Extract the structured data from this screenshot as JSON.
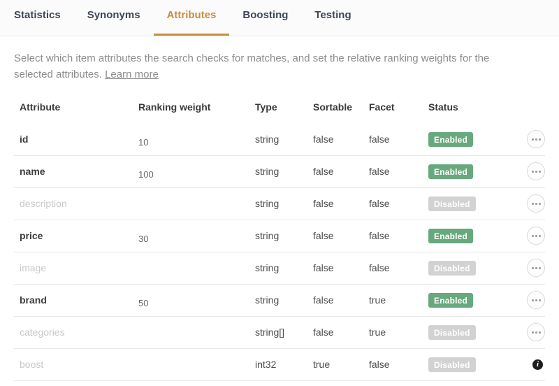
{
  "tabs": [
    {
      "label": "Statistics",
      "active": false
    },
    {
      "label": "Synonyms",
      "active": false
    },
    {
      "label": "Attributes",
      "active": true
    },
    {
      "label": "Boosting",
      "active": false
    },
    {
      "label": "Testing",
      "active": false
    }
  ],
  "description": {
    "text": "Select which item attributes the search checks for matches, and set the relative ranking weights for the selected attributes.",
    "link_label": "Learn more"
  },
  "table": {
    "headers": {
      "attribute": "Attribute",
      "weight": "Ranking weight",
      "type": "Type",
      "sortable": "Sortable",
      "facet": "Facet",
      "status": "Status"
    },
    "rows": [
      {
        "attribute": "id",
        "weight": "10",
        "type": "string",
        "sortable": "false",
        "facet": "false",
        "status": "Enabled",
        "enabled": true,
        "action": "menu"
      },
      {
        "attribute": "name",
        "weight": "100",
        "type": "string",
        "sortable": "false",
        "facet": "false",
        "status": "Enabled",
        "enabled": true,
        "action": "menu"
      },
      {
        "attribute": "description",
        "weight": "",
        "type": "string",
        "sortable": "false",
        "facet": "false",
        "status": "Disabled",
        "enabled": false,
        "action": "menu"
      },
      {
        "attribute": "price",
        "weight": "30",
        "type": "string",
        "sortable": "false",
        "facet": "false",
        "status": "Enabled",
        "enabled": true,
        "action": "menu"
      },
      {
        "attribute": "image",
        "weight": "",
        "type": "string",
        "sortable": "false",
        "facet": "false",
        "status": "Disabled",
        "enabled": false,
        "action": "menu"
      },
      {
        "attribute": "brand",
        "weight": "50",
        "type": "string",
        "sortable": "false",
        "facet": "true",
        "status": "Enabled",
        "enabled": true,
        "action": "menu"
      },
      {
        "attribute": "categories",
        "weight": "",
        "type": "string[]",
        "sortable": "false",
        "facet": "true",
        "status": "Disabled",
        "enabled": false,
        "action": "menu"
      },
      {
        "attribute": "boost",
        "weight": "",
        "type": "int32",
        "sortable": "true",
        "facet": "false",
        "status": "Disabled",
        "enabled": false,
        "action": "info"
      }
    ]
  },
  "icons": {
    "row_menu": "ellipsis-icon",
    "info": "info-icon"
  },
  "colors": {
    "tab_active": "#cd8b3f",
    "tab_inactive": "#3e4756",
    "badge_enabled": "#67a97c",
    "badge_disabled": "#d2d2d2"
  },
  "info_glyph": "i"
}
